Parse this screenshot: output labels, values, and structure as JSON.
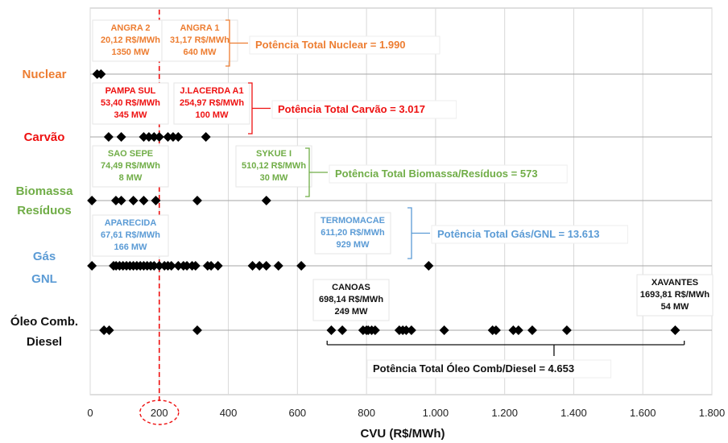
{
  "chart_data": {
    "type": "scatter",
    "xlabel": "CVU (R$/MWh)",
    "xlim": [
      0,
      1800
    ],
    "x_ticks": [
      0,
      200,
      400,
      600,
      800,
      1000,
      1200,
      1400,
      1600,
      1800
    ],
    "x_tick_labels": [
      "0",
      "200",
      "400",
      "600",
      "800",
      "1.000",
      "1.200",
      "1.400",
      "1.600",
      "1.800"
    ],
    "highlighted_x": 200,
    "categories": [
      {
        "label_lines": [
          "Nuclear"
        ],
        "color": "#ed7d31"
      },
      {
        "label_lines": [
          "Carvão"
        ],
        "color": "#ee1111"
      },
      {
        "label_lines": [
          "Biomassa",
          "Resíduos"
        ],
        "color": "#70ad47"
      },
      {
        "label_lines": [
          "Gás",
          "GNL"
        ],
        "color": "#5b9bd5"
      },
      {
        "label_lines": [
          "Óleo Comb.",
          "Diesel"
        ],
        "color": "#111111"
      }
    ],
    "series": [
      {
        "category": "Nuclear",
        "x": [
          20.12,
          31.17
        ]
      },
      {
        "category": "Carvão",
        "x": [
          53.4,
          90,
          155,
          170,
          185,
          200,
          225,
          240,
          254.97,
          335
        ]
      },
      {
        "category": "Biomassa/Resíduos",
        "x": [
          5,
          74.49,
          90,
          125,
          155,
          190,
          310,
          510.12
        ]
      },
      {
        "category": "Gás/GNL",
        "x": [
          5,
          67.61,
          75,
          85,
          95,
          105,
          115,
          125,
          135,
          145,
          155,
          165,
          175,
          185,
          200,
          215,
          225,
          235,
          255,
          270,
          280,
          295,
          305,
          340,
          350,
          370,
          470,
          490,
          510,
          545,
          611.2,
          980
        ]
      },
      {
        "category": "Óleo Comb./Diesel",
        "x": [
          40,
          55,
          310,
          698.14,
          730,
          790,
          800,
          805,
          815,
          825,
          895,
          905,
          915,
          930,
          1025,
          1165,
          1175,
          1225,
          1240,
          1280,
          1380,
          1693.81
        ]
      }
    ],
    "annotations": [
      {
        "category": "Nuclear",
        "lines": [
          "ANGRA 2",
          "20,12 R$/MWh",
          "1350 MW"
        ],
        "color": "#ed7d31"
      },
      {
        "category": "Nuclear",
        "lines": [
          "ANGRA 1",
          "31,17 R$/MWh",
          "640 MW"
        ],
        "color": "#ed7d31"
      },
      {
        "category": "Carvão",
        "lines": [
          "PAMPA SUL",
          "53,40 R$/MWh",
          "345 MW"
        ],
        "color": "#ee1111"
      },
      {
        "category": "Carvão",
        "lines": [
          "J.LACERDA A1",
          "254,97 R$/MWh",
          "100 MW"
        ],
        "color": "#ee1111"
      },
      {
        "category": "Biomassa/Resíduos",
        "lines": [
          "SAO SEPE",
          "74,49 R$/MWh",
          "8 MW"
        ],
        "color": "#70ad47"
      },
      {
        "category": "Biomassa/Resíduos",
        "lines": [
          "SYKUE I",
          "510,12 R$/MWh",
          "30 MW"
        ],
        "color": "#70ad47"
      },
      {
        "category": "Gás/GNL",
        "lines": [
          "APARECIDA",
          "67,61 R$/MWh",
          "166 MW"
        ],
        "color": "#5b9bd5"
      },
      {
        "category": "Gás/GNL",
        "lines": [
          "TERMOMACAE",
          "611,20 R$/MWh",
          "929 MW"
        ],
        "color": "#5b9bd5"
      },
      {
        "category": "Óleo Comb./Diesel",
        "lines": [
          "CANOAS",
          "698,14 R$/MWh",
          "249 MW"
        ],
        "color": "#111111"
      },
      {
        "category": "Óleo Comb./Diesel",
        "lines": [
          "XAVANTES",
          "1693,81 R$/MWh",
          "54 MW"
        ],
        "color": "#111111"
      }
    ],
    "totals": [
      {
        "text": "Potência Total Nuclear = 1.990",
        "color": "#ed7d31"
      },
      {
        "text": "Potência Total Carvão = 3.017",
        "color": "#ee1111"
      },
      {
        "text": "Potência Total Biomassa/Resíduos = 573",
        "color": "#70ad47"
      },
      {
        "text": "Potência Total Gás/GNL = 13.613",
        "color": "#5b9bd5"
      },
      {
        "text": "Potência Total Óleo Comb/Diesel = 4.653",
        "color": "#111111"
      }
    ],
    "grid": true
  }
}
